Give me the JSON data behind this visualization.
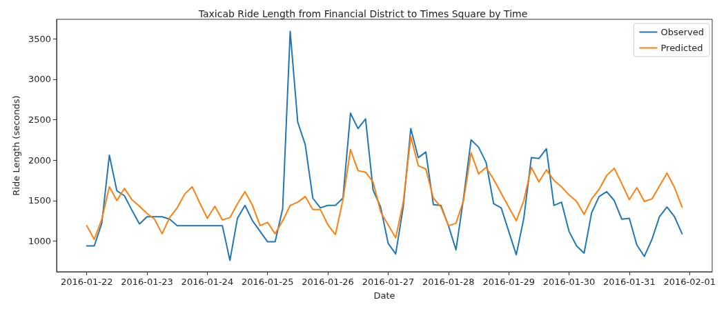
{
  "chart_data": {
    "type": "line",
    "title": "Taxicab Ride Length from Financial District to Times Square by Time",
    "xlabel": "Date",
    "ylabel": "Ride Length (seconds)",
    "x": [
      "2016-01-22T00:00",
      "2016-01-22T03:00",
      "2016-01-22T06:00",
      "2016-01-22T09:00",
      "2016-01-22T12:00",
      "2016-01-22T15:00",
      "2016-01-22T18:00",
      "2016-01-22T21:00",
      "2016-01-23T00:00",
      "2016-01-23T03:00",
      "2016-01-23T06:00",
      "2016-01-23T09:00",
      "2016-01-23T12:00",
      "2016-01-23T15:00",
      "2016-01-23T18:00",
      "2016-01-23T21:00",
      "2016-01-24T00:00",
      "2016-01-24T03:00",
      "2016-01-24T06:00",
      "2016-01-24T09:00",
      "2016-01-24T12:00",
      "2016-01-24T15:00",
      "2016-01-24T18:00",
      "2016-01-24T21:00",
      "2016-01-25T00:00",
      "2016-01-25T03:00",
      "2016-01-25T06:00",
      "2016-01-25T09:00",
      "2016-01-25T12:00",
      "2016-01-25T15:00",
      "2016-01-25T18:00",
      "2016-01-25T21:00",
      "2016-01-26T00:00",
      "2016-01-26T03:00",
      "2016-01-26T06:00",
      "2016-01-26T09:00",
      "2016-01-26T12:00",
      "2016-01-26T15:00",
      "2016-01-26T18:00",
      "2016-01-26T21:00",
      "2016-01-27T00:00",
      "2016-01-27T03:00",
      "2016-01-27T06:00",
      "2016-01-27T09:00",
      "2016-01-27T12:00",
      "2016-01-27T15:00",
      "2016-01-27T18:00",
      "2016-01-27T21:00",
      "2016-01-28T00:00",
      "2016-01-28T03:00",
      "2016-01-28T06:00",
      "2016-01-28T09:00",
      "2016-01-28T12:00",
      "2016-01-28T15:00",
      "2016-01-28T18:00",
      "2016-01-28T21:00",
      "2016-01-29T00:00",
      "2016-01-29T03:00",
      "2016-01-29T06:00",
      "2016-01-29T09:00",
      "2016-01-29T12:00",
      "2016-01-29T15:00",
      "2016-01-29T18:00",
      "2016-01-29T21:00",
      "2016-01-30T00:00",
      "2016-01-30T03:00",
      "2016-01-30T06:00",
      "2016-01-30T09:00",
      "2016-01-30T12:00",
      "2016-01-30T15:00",
      "2016-01-30T18:00",
      "2016-01-30T21:00",
      "2016-01-31T00:00",
      "2016-01-31T03:00",
      "2016-01-31T06:00",
      "2016-01-31T09:00",
      "2016-01-31T12:00",
      "2016-01-31T15:00",
      "2016-01-31T18:00",
      "2016-01-31T21:00"
    ],
    "series": [
      {
        "name": "Observed",
        "color": "#1f77b4",
        "values": [
          940,
          940,
          1220,
          2060,
          1620,
          1560,
          1380,
          1210,
          1300,
          1300,
          1300,
          1270,
          1190,
          1190,
          1190,
          1190,
          1190,
          1190,
          1190,
          760,
          1280,
          1440,
          1250,
          1120,
          990,
          990,
          1400,
          3590,
          2470,
          2190,
          1530,
          1410,
          1440,
          1440,
          1530,
          2580,
          2390,
          2510,
          1630,
          1420,
          970,
          840,
          1420,
          2390,
          2030,
          2100,
          1450,
          1440,
          1190,
          890,
          1530,
          2250,
          2160,
          1970,
          1460,
          1410,
          1120,
          830,
          1280,
          2030,
          2020,
          2140,
          1440,
          1480,
          1120,
          940,
          850,
          1350,
          1550,
          1610,
          1500,
          1270,
          1280,
          950,
          810,
          1020,
          1300,
          1420,
          1300,
          1090
        ]
      },
      {
        "name": "Predicted",
        "color": "#ff7f0e",
        "values": [
          1190,
          1020,
          1270,
          1670,
          1500,
          1650,
          1510,
          1430,
          1340,
          1270,
          1090,
          1290,
          1410,
          1580,
          1670,
          1470,
          1280,
          1430,
          1260,
          1290,
          1460,
          1610,
          1440,
          1190,
          1230,
          1090,
          1250,
          1440,
          1480,
          1550,
          1390,
          1390,
          1200,
          1080,
          1510,
          2130,
          1870,
          1850,
          1730,
          1360,
          1200,
          1040,
          1480,
          2290,
          1930,
          1890,
          1530,
          1420,
          1190,
          1220,
          1500,
          2090,
          1830,
          1910,
          1760,
          1590,
          1420,
          1250,
          1500,
          1910,
          1730,
          1880,
          1750,
          1670,
          1570,
          1490,
          1330,
          1520,
          1640,
          1810,
          1900,
          1710,
          1510,
          1660,
          1490,
          1520,
          1680,
          1840,
          1660,
          1420
        ]
      }
    ],
    "xlim": [
      "2016-01-21T12:00",
      "2016-02-01T09:00"
    ],
    "xticks": [
      "2016-01-22",
      "2016-01-23",
      "2016-01-24",
      "2016-01-25",
      "2016-01-26",
      "2016-01-27",
      "2016-01-28",
      "2016-01-29",
      "2016-01-30",
      "2016-01-31",
      "2016-02-01"
    ],
    "ylim": [
      620,
      3740
    ],
    "yticks": [
      1000,
      1500,
      2000,
      2500,
      3000,
      3500
    ],
    "legend": "top right",
    "line_style": "solid",
    "marker": "none"
  }
}
